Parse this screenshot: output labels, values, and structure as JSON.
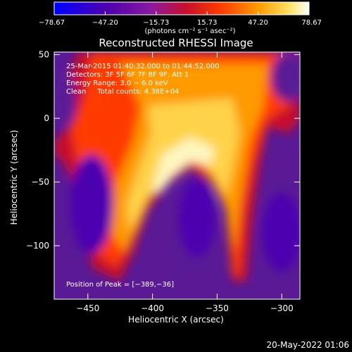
{
  "chart_data": {
    "type": "heatmap",
    "title": "Reconstructed RHESSI Image",
    "xlabel": "Heliocentric X (arcsec)",
    "ylabel": "Heliocentric Y (arcsec)",
    "xlim": [
      -476,
      -286
    ],
    "ylim": [
      -142,
      52
    ],
    "x_ticks": [
      -450,
      -400,
      -350,
      -300
    ],
    "x_tick_labels": [
      "−450",
      "−400",
      "−350",
      "−300"
    ],
    "y_ticks": [
      50,
      0,
      -50,
      -100
    ],
    "y_tick_labels": [
      "50",
      "0",
      "−50",
      "−100"
    ],
    "colorbar": {
      "min": -78.67,
      "max": 78.67,
      "ticks": [
        -78.67,
        -47.2,
        -15.73,
        15.73,
        47.2,
        78.67
      ],
      "tick_labels": [
        "−78.67",
        "−47.20",
        "−15.73",
        "15.73",
        "47.20",
        "78.67"
      ],
      "units": "(photons cm⁻² s⁻¹ asec⁻²)"
    },
    "annotations": [
      "25-Mar-2015 01:40:32.000 to 01:44:52.000",
      "Detectors: 3F 5F 6F 7F 8F 9F, Att 1",
      "Energy Range: 3.0 − 6.0 keV",
      "Clean     Total counts: 4.38E+04"
    ],
    "peak_label": "Position of Peak = [−389,−36]",
    "peak": [
      -389,
      -36
    ]
  },
  "footer_timestamp": "20-May-2022 01:06",
  "colors": {
    "background": "#000000",
    "text": "#ffffff",
    "colormap": [
      "#0000ff",
      "#4b0082",
      "#9400d3",
      "#c0003c",
      "#ff2000",
      "#ff8c00",
      "#ffd700",
      "#ffffff"
    ]
  }
}
